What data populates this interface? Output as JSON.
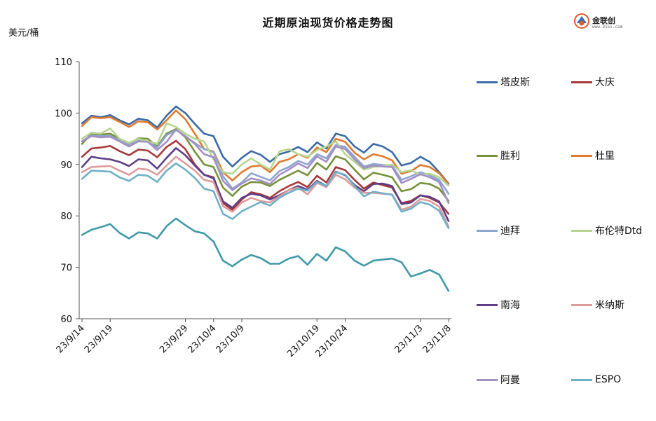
{
  "chart_data": {
    "type": "line",
    "title": "近期原油现货价格走势图",
    "unit_label": "美元/桶",
    "ylim": [
      60,
      110
    ],
    "yticks": [
      60,
      70,
      80,
      90,
      100,
      110
    ],
    "grid": false,
    "legend_position": "right",
    "xtick_labels": [
      "23/9/14",
      "23/9/19",
      "23/9/24",
      "23/9/29",
      "23/10/4",
      "23/10/9",
      "23/10/14",
      "23/10/19",
      "23/10/24",
      "23/10/29",
      "23/11/3",
      "23/11/8"
    ],
    "x": [
      "23/9/14",
      "23/9/15",
      "23/9/18",
      "23/9/19",
      "23/9/20",
      "23/9/21",
      "23/9/22",
      "23/9/25",
      "23/9/26",
      "23/9/27",
      "23/9/28",
      "23/9/29",
      "23/10/2",
      "23/10/3",
      "23/10/4",
      "23/10/5",
      "23/10/6",
      "23/10/9",
      "23/10/10",
      "23/10/11",
      "23/10/12",
      "23/10/13",
      "23/10/16",
      "23/10/17",
      "23/10/18",
      "23/10/19",
      "23/10/20",
      "23/10/23",
      "23/10/24",
      "23/10/25",
      "23/10/26",
      "23/10/27",
      "23/10/30",
      "23/10/31",
      "23/11/1",
      "23/11/2",
      "23/11/3",
      "23/11/6",
      "23/11/7",
      "23/11/8"
    ],
    "series": [
      {
        "name": "塔皮斯",
        "color": "#3b6aa8",
        "values": [
          98.0,
          99.5,
          99.2,
          99.6,
          98.6,
          97.8,
          98.9,
          98.6,
          97.2,
          99.5,
          101.3,
          100.0,
          97.9,
          96.0,
          95.5,
          91.5,
          89.6,
          91.3,
          92.6,
          91.9,
          90.5,
          92.0,
          92.5,
          93.4,
          92.4,
          94.3,
          93.1,
          96.0,
          95.5,
          93.5,
          92.3,
          94.0,
          93.5,
          92.4,
          89.8,
          90.3,
          91.5,
          90.5,
          88.5,
          86.3
        ]
      },
      {
        "name": "大庆",
        "color": "#a8383a",
        "values": [
          91.5,
          93.1,
          93.3,
          93.6,
          92.6,
          91.8,
          92.9,
          92.7,
          91.4,
          93.4,
          94.6,
          93.0,
          90.0,
          88.0,
          87.5,
          82.5,
          81.2,
          83.2,
          84.6,
          84.2,
          83.5,
          84.8,
          85.8,
          86.6,
          85.6,
          87.8,
          86.5,
          89.5,
          88.9,
          87.0,
          85.3,
          86.5,
          86.0,
          85.5,
          82.5,
          82.9,
          84.0,
          83.5,
          82.6,
          80.4
        ]
      },
      {
        "name": "胜利",
        "color": "#76923c",
        "values": [
          94.0,
          96.0,
          95.8,
          96.0,
          95.0,
          94.0,
          95.1,
          95.0,
          93.5,
          96.0,
          96.9,
          95.3,
          92.5,
          90.0,
          89.5,
          85.5,
          83.9,
          85.7,
          86.6,
          86.5,
          85.8,
          87.0,
          87.9,
          88.8,
          87.9,
          90.3,
          89.0,
          91.6,
          91.0,
          89.0,
          87.1,
          88.4,
          88.0,
          87.5,
          84.8,
          85.2,
          86.4,
          86.2,
          85.3,
          82.9
        ]
      },
      {
        "name": "杜里",
        "color": "#e07a2f",
        "values": [
          97.5,
          99.2,
          99.0,
          99.2,
          98.3,
          97.3,
          98.4,
          98.2,
          96.8,
          98.6,
          100.5,
          98.8,
          96.0,
          93.0,
          92.5,
          88.5,
          86.9,
          88.5,
          89.6,
          89.8,
          88.5,
          90.5,
          91.0,
          92.0,
          91.3,
          93.3,
          92.4,
          95.0,
          94.4,
          92.3,
          91.0,
          92.0,
          91.6,
          90.8,
          88.2,
          88.7,
          89.9,
          89.5,
          88.3,
          86.2
        ]
      },
      {
        "name": "迪拜",
        "color": "#8ea6cf",
        "values": [
          94.5,
          95.7,
          95.5,
          95.6,
          94.7,
          93.8,
          94.7,
          94.5,
          93.3,
          95.7,
          96.7,
          95.5,
          94.2,
          93.0,
          92.4,
          87.7,
          85.3,
          86.5,
          88.3,
          87.6,
          86.9,
          88.7,
          89.5,
          90.7,
          90.0,
          92.0,
          91.2,
          93.8,
          93.4,
          91.5,
          89.6,
          90.1,
          89.9,
          89.8,
          87.0,
          87.7,
          88.5,
          87.9,
          87.0,
          84.3
        ]
      },
      {
        "name": "布伦特Dtd",
        "color": "#b6d690",
        "values": [
          95.0,
          96.2,
          96.0,
          97.0,
          95.0,
          94.2,
          95.0,
          94.5,
          94.0,
          98.0,
          97.3,
          96.0,
          95.0,
          94.5,
          91.0,
          88.5,
          88.2,
          90.0,
          91.2,
          90.0,
          89.0,
          92.5,
          93.0,
          92.0,
          91.5,
          92.8,
          93.5,
          94.5,
          92.0,
          90.5,
          89.0,
          89.5,
          89.7,
          90.0,
          88.5,
          88.9,
          88.0,
          88.2,
          87.5,
          85.9
        ]
      },
      {
        "name": "南海",
        "color": "#5e3d86",
        "values": [
          89.5,
          91.5,
          91.2,
          91.0,
          90.5,
          89.7,
          91.0,
          90.8,
          89.2,
          91.3,
          93.2,
          91.8,
          89.8,
          88.0,
          87.3,
          82.8,
          81.6,
          83.5,
          84.3,
          84.0,
          83.2,
          84.0,
          85.0,
          85.8,
          85.1,
          86.8,
          85.8,
          88.6,
          87.9,
          86.0,
          84.8,
          86.2,
          86.3,
          85.8,
          82.3,
          82.6,
          84.0,
          83.7,
          82.8,
          79.0
        ]
      },
      {
        "name": "米纳斯",
        "color": "#df9a9c",
        "values": [
          88.5,
          89.5,
          89.6,
          89.7,
          88.8,
          88.0,
          89.2,
          89.0,
          88.0,
          89.8,
          91.5,
          90.2,
          88.8,
          87.0,
          86.6,
          81.9,
          80.8,
          82.6,
          83.5,
          82.9,
          82.6,
          83.8,
          85.0,
          85.5,
          84.2,
          86.4,
          85.6,
          88.0,
          87.1,
          85.5,
          84.5,
          84.5,
          84.3,
          84.2,
          81.2,
          81.8,
          83.3,
          82.9,
          81.8,
          77.9
        ]
      },
      {
        "name": "阿曼",
        "color": "#a48fc4",
        "values": [
          94.5,
          95.5,
          95.3,
          95.4,
          94.5,
          93.5,
          94.5,
          94.4,
          92.8,
          94.4,
          96.8,
          95.5,
          94.0,
          92.0,
          91.4,
          86.8,
          85.0,
          86.3,
          87.3,
          86.9,
          86.2,
          88.0,
          89.0,
          90.2,
          89.3,
          91.6,
          90.5,
          93.5,
          93.0,
          91.0,
          89.3,
          89.8,
          89.6,
          89.5,
          86.4,
          87.2,
          88.1,
          87.5,
          86.6,
          82.5
        ]
      },
      {
        "name": "ESPO",
        "color": "#6fb0c9",
        "values": [
          87.2,
          88.8,
          88.7,
          88.6,
          87.5,
          86.8,
          88.0,
          87.8,
          86.6,
          88.8,
          90.2,
          89.0,
          87.4,
          85.3,
          84.8,
          80.4,
          79.4,
          80.9,
          81.8,
          82.7,
          82.0,
          83.5,
          84.5,
          85.3,
          84.9,
          86.6,
          85.8,
          88.5,
          88.0,
          85.8,
          83.8,
          84.7,
          84.4,
          84.1,
          80.8,
          81.4,
          82.7,
          82.2,
          81.0,
          77.6
        ]
      },
      {
        "name": "",
        "color": "#3f99a8",
        "values": [
          76.3,
          77.3,
          77.8,
          78.4,
          76.7,
          75.6,
          76.8,
          76.6,
          75.6,
          78.0,
          79.5,
          78.2,
          77.0,
          76.6,
          75.0,
          71.3,
          70.2,
          71.5,
          72.4,
          71.8,
          70.7,
          70.7,
          71.7,
          72.2,
          70.5,
          72.6,
          71.3,
          73.9,
          73.1,
          71.3,
          70.3,
          71.3,
          71.5,
          71.7,
          71.0,
          68.2,
          68.8,
          69.5,
          68.6,
          65.4
        ]
      }
    ]
  }
}
